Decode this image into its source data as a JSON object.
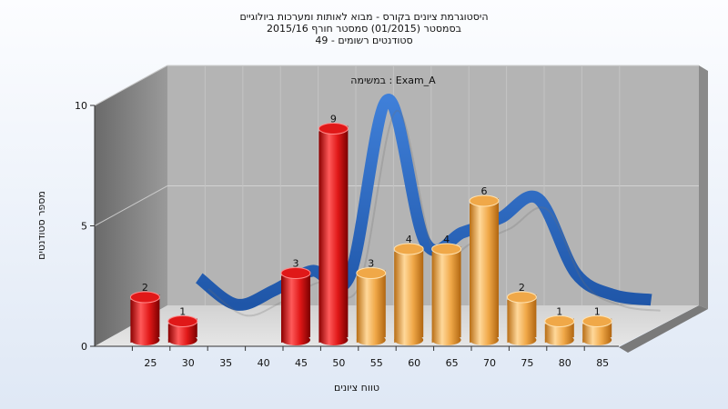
{
  "chart_data": {
    "type": "bar",
    "title_lines": [
      "היסטוגרמת ציונים בקורס - מבוא לאותות ומערכות ביולוגיים",
      "בסמסטר (01/2015) סמסטר חורף 2015/16",
      "סטודנטים רשומים - 49"
    ],
    "annotation": "Exam_A : במשימה",
    "xlabel": "טווח ציונים",
    "ylabel": "מספר סטודנטים",
    "ylim": [
      0,
      10
    ],
    "yticks": [
      "0",
      "5",
      "10"
    ],
    "categories": [
      "25",
      "30",
      "35",
      "40",
      "45",
      "50",
      "55",
      "60",
      "65",
      "70",
      "75",
      "80",
      "85"
    ],
    "bars": [
      {
        "x": 25,
        "value": 2,
        "label": "2",
        "color": "#e01818"
      },
      {
        "x": 30,
        "value": 1,
        "label": "1",
        "color": "#e01818"
      },
      {
        "x": 45,
        "value": 3,
        "label": "3",
        "color": "#e01818"
      },
      {
        "x": 50,
        "value": 9,
        "label": "9",
        "color": "#e01818"
      },
      {
        "x": 55,
        "value": 3,
        "label": "3",
        "color": "#f0a848"
      },
      {
        "x": 60,
        "value": 4,
        "label": "4",
        "color": "#f0a848"
      },
      {
        "x": 65,
        "value": 4,
        "label": "4",
        "color": "#f0a848"
      },
      {
        "x": 70,
        "value": 6,
        "label": "6",
        "color": "#f0a848"
      },
      {
        "x": 75,
        "value": 2,
        "label": "2",
        "color": "#f0a848"
      },
      {
        "x": 80,
        "value": 1,
        "label": "1",
        "color": "#f0a848"
      },
      {
        "x": 85,
        "value": 1,
        "label": "1",
        "color": "#f0a848"
      }
    ],
    "trend": {
      "x": [
        30,
        35,
        40,
        45,
        50,
        55,
        60,
        65,
        70,
        75,
        80,
        85,
        90
      ],
      "y": [
        2,
        0.9,
        1.5,
        2.3,
        2.1,
        9.4,
        3.5,
        3.9,
        4.5,
        5.3,
        2.2,
        1.3,
        1.1
      ],
      "color": "#2e6bc6"
    },
    "grid": true
  }
}
